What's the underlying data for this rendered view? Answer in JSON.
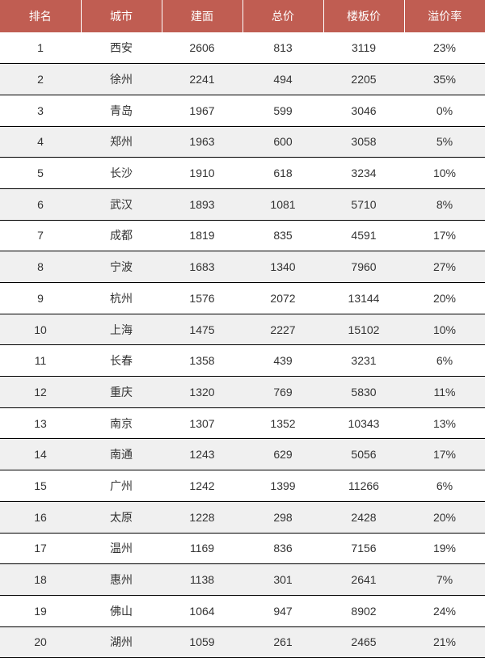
{
  "table": {
    "type": "table",
    "header_bg": "#c05d52",
    "header_text_color": "#ffffff",
    "header_fontsize": 14,
    "header_border_color": "#ffffff",
    "body_text_color": "#333333",
    "body_fontsize": 14,
    "row_border_color": "#000000",
    "row_alt_bg": "#f0f0f0",
    "row_bg": "#ffffff",
    "row_height": 38.7,
    "columns": [
      {
        "key": "rank",
        "label": "排名"
      },
      {
        "key": "city",
        "label": "城市"
      },
      {
        "key": "area",
        "label": "建面"
      },
      {
        "key": "total",
        "label": "总价"
      },
      {
        "key": "floor_price",
        "label": "楼板价"
      },
      {
        "key": "premium",
        "label": "溢价率"
      }
    ],
    "rows": [
      {
        "rank": "1",
        "city": "西安",
        "area": "2606",
        "total": "813",
        "floor_price": "3119",
        "premium": "23%"
      },
      {
        "rank": "2",
        "city": "徐州",
        "area": "2241",
        "total": "494",
        "floor_price": "2205",
        "premium": "35%"
      },
      {
        "rank": "3",
        "city": "青岛",
        "area": "1967",
        "total": "599",
        "floor_price": "3046",
        "premium": "0%"
      },
      {
        "rank": "4",
        "city": "郑州",
        "area": "1963",
        "total": "600",
        "floor_price": "3058",
        "premium": "5%"
      },
      {
        "rank": "5",
        "city": "长沙",
        "area": "1910",
        "total": "618",
        "floor_price": "3234",
        "premium": "10%"
      },
      {
        "rank": "6",
        "city": "武汉",
        "area": "1893",
        "total": "1081",
        "floor_price": "5710",
        "premium": "8%"
      },
      {
        "rank": "7",
        "city": "成都",
        "area": "1819",
        "total": "835",
        "floor_price": "4591",
        "premium": "17%"
      },
      {
        "rank": "8",
        "city": "宁波",
        "area": "1683",
        "total": "1340",
        "floor_price": "7960",
        "premium": "27%"
      },
      {
        "rank": "9",
        "city": "杭州",
        "area": "1576",
        "total": "2072",
        "floor_price": "13144",
        "premium": "20%"
      },
      {
        "rank": "10",
        "city": "上海",
        "area": "1475",
        "total": "2227",
        "floor_price": "15102",
        "premium": "10%"
      },
      {
        "rank": "11",
        "city": "长春",
        "area": "1358",
        "total": "439",
        "floor_price": "3231",
        "premium": "6%"
      },
      {
        "rank": "12",
        "city": "重庆",
        "area": "1320",
        "total": "769",
        "floor_price": "5830",
        "premium": "11%"
      },
      {
        "rank": "13",
        "city": "南京",
        "area": "1307",
        "total": "1352",
        "floor_price": "10343",
        "premium": "13%"
      },
      {
        "rank": "14",
        "city": "南通",
        "area": "1243",
        "total": "629",
        "floor_price": "5056",
        "premium": "17%"
      },
      {
        "rank": "15",
        "city": "广州",
        "area": "1242",
        "total": "1399",
        "floor_price": "11266",
        "premium": "6%"
      },
      {
        "rank": "16",
        "city": "太原",
        "area": "1228",
        "total": "298",
        "floor_price": "2428",
        "premium": "20%"
      },
      {
        "rank": "17",
        "city": "温州",
        "area": "1169",
        "total": "836",
        "floor_price": "7156",
        "premium": "19%"
      },
      {
        "rank": "18",
        "city": "惠州",
        "area": "1138",
        "total": "301",
        "floor_price": "2641",
        "premium": "7%"
      },
      {
        "rank": "19",
        "city": "佛山",
        "area": "1064",
        "total": "947",
        "floor_price": "8902",
        "premium": "24%"
      },
      {
        "rank": "20",
        "city": "湖州",
        "area": "1059",
        "total": "261",
        "floor_price": "2465",
        "premium": "21%"
      }
    ]
  }
}
